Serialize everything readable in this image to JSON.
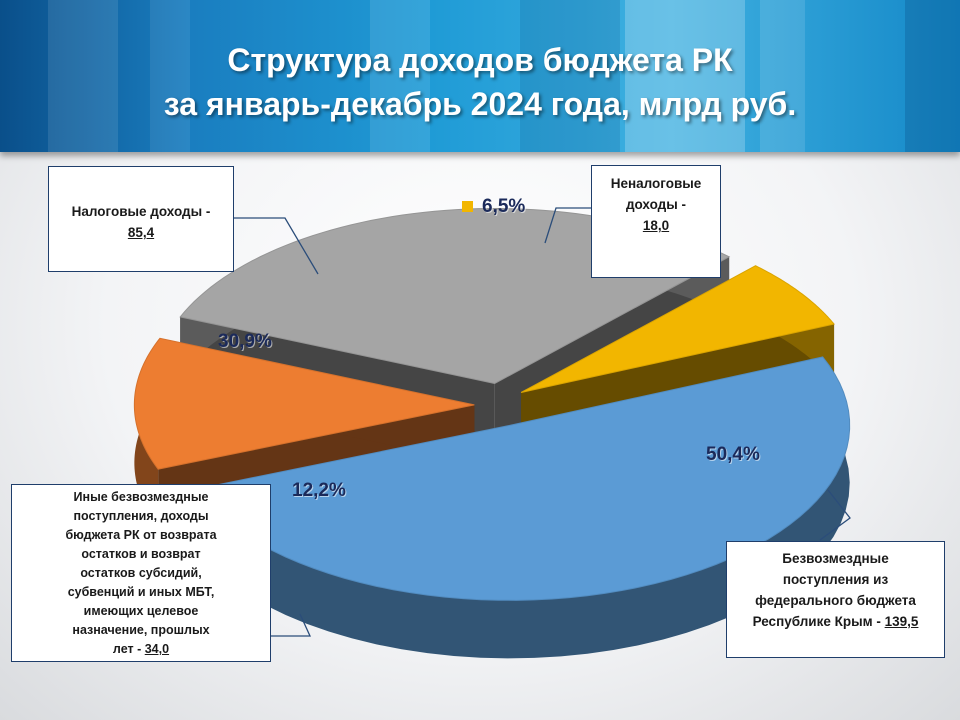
{
  "title": {
    "line1": "Структура доходов бюджета РК",
    "line2": "за январь-декабрь 2024 года, млрд руб."
  },
  "chart_data": {
    "type": "pie",
    "title": "Структура доходов бюджета РК за январь-декабрь 2024 года, млрд руб.",
    "units": "млрд руб.",
    "series": [
      {
        "name": "Безвозмездные поступления из федерального бюджета Республике Крым",
        "value": 139.5,
        "value_label": "139,5",
        "percent": 50.4,
        "percent_label": "50,4%",
        "color": "#5b9bd5"
      },
      {
        "name": "Иные безвозмездные поступления, доходы бюджета РК от возврата остатков и возврат остатков субсидий, субвенций и иных МБТ, имеющих целевое назначение, прошлых лет",
        "value": 34.0,
        "value_label": "34,0",
        "percent": 12.2,
        "percent_label": "12,2%",
        "color": "#ed7d31"
      },
      {
        "name": "Налоговые доходы",
        "value": 85.4,
        "value_label": "85,4",
        "percent": 30.9,
        "percent_label": "30,9%",
        "color": "#a5a5a5"
      },
      {
        "name": "Неналоговые доходы",
        "value": 18.0,
        "value_label": "18,0",
        "percent": 6.5,
        "percent_label": "6,5%",
        "color": "#f2b600"
      }
    ],
    "exploded": true,
    "three_d": true,
    "legend": "callout boxes"
  },
  "callouts": {
    "tax": {
      "line1": "Налоговые доходы -",
      "value": "85,4"
    },
    "nontax": {
      "line1": "Неналоговые",
      "line2": "доходы  -",
      "value": "18,0"
    },
    "federal": {
      "line1": "Безвозмездные",
      "line2": "поступления  из",
      "line3": "федерального бюджета",
      "line4": "Республике Крым - ",
      "value": "139,5"
    },
    "other": {
      "line1": "Иные безвозмездные",
      "line2": "поступления, доходы",
      "line3": "бюджета РК от возврата",
      "line4": "остатков и возврат",
      "line5": "остатков субсидий,",
      "line6": "субвенций и иных МБТ,",
      "line7": "имеющих целевое",
      "line8": "назначение, прошлых",
      "line9": "лет - ",
      "value": "34,0"
    }
  }
}
